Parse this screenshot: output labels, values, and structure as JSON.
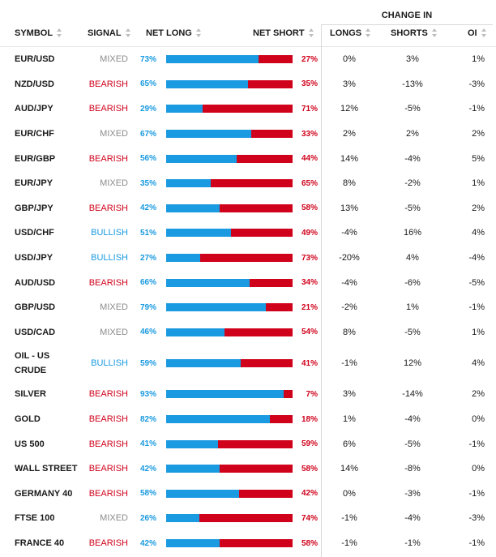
{
  "header": {
    "change_group": "CHANGE IN",
    "symbol": "SYMBOL",
    "signal": "SIGNAL",
    "net_long": "NET LONG",
    "net_short": "NET SHORT",
    "longs": "LONGS",
    "shorts": "SHORTS",
    "oi": "OI"
  },
  "colors": {
    "long": "#1a9ae0",
    "short": "#d0021b",
    "bullish": "#1a9ae0",
    "bearish": "#d0021b",
    "mixed": "#8c8c8c"
  },
  "rows": [
    {
      "symbol": "EUR/USD",
      "signal": "MIXED",
      "net_long": "73%",
      "net_long_value": 73,
      "net_short": "27%",
      "longs": "0%",
      "shorts": "3%",
      "oi": "1%"
    },
    {
      "symbol": "NZD/USD",
      "signal": "BEARISH",
      "net_long": "65%",
      "net_long_value": 65,
      "net_short": "35%",
      "longs": "3%",
      "shorts": "-13%",
      "oi": "-3%"
    },
    {
      "symbol": "AUD/JPY",
      "signal": "BEARISH",
      "net_long": "29%",
      "net_long_value": 29,
      "net_short": "71%",
      "longs": "12%",
      "shorts": "-5%",
      "oi": "-1%"
    },
    {
      "symbol": "EUR/CHF",
      "signal": "MIXED",
      "net_long": "67%",
      "net_long_value": 67,
      "net_short": "33%",
      "longs": "2%",
      "shorts": "2%",
      "oi": "2%"
    },
    {
      "symbol": "EUR/GBP",
      "signal": "BEARISH",
      "net_long": "56%",
      "net_long_value": 56,
      "net_short": "44%",
      "longs": "14%",
      "shorts": "-4%",
      "oi": "5%"
    },
    {
      "symbol": "EUR/JPY",
      "signal": "MIXED",
      "net_long": "35%",
      "net_long_value": 35,
      "net_short": "65%",
      "longs": "8%",
      "shorts": "-2%",
      "oi": "1%"
    },
    {
      "symbol": "GBP/JPY",
      "signal": "BEARISH",
      "net_long": "42%",
      "net_long_value": 42,
      "net_short": "58%",
      "longs": "13%",
      "shorts": "-5%",
      "oi": "2%"
    },
    {
      "symbol": "USD/CHF",
      "signal": "BULLISH",
      "net_long": "51%",
      "net_long_value": 51,
      "net_short": "49%",
      "longs": "-4%",
      "shorts": "16%",
      "oi": "4%"
    },
    {
      "symbol": "USD/JPY",
      "signal": "BULLISH",
      "net_long": "27%",
      "net_long_value": 27,
      "net_short": "73%",
      "longs": "-20%",
      "shorts": "4%",
      "oi": "-4%"
    },
    {
      "symbol": "AUD/USD",
      "signal": "BEARISH",
      "net_long": "66%",
      "net_long_value": 66,
      "net_short": "34%",
      "longs": "-4%",
      "shorts": "-6%",
      "oi": "-5%"
    },
    {
      "symbol": "GBP/USD",
      "signal": "MIXED",
      "net_long": "79%",
      "net_long_value": 79,
      "net_short": "21%",
      "longs": "-2%",
      "shorts": "1%",
      "oi": "-1%"
    },
    {
      "symbol": "USD/CAD",
      "signal": "MIXED",
      "net_long": "46%",
      "net_long_value": 46,
      "net_short": "54%",
      "longs": "8%",
      "shorts": "-5%",
      "oi": "1%"
    },
    {
      "symbol": "OIL - US CRUDE",
      "signal": "BULLISH",
      "net_long": "59%",
      "net_long_value": 59,
      "net_short": "41%",
      "longs": "-1%",
      "shorts": "12%",
      "oi": "4%"
    },
    {
      "symbol": "SILVER",
      "signal": "BEARISH",
      "net_long": "93%",
      "net_long_value": 93,
      "net_short": "7%",
      "longs": "3%",
      "shorts": "-14%",
      "oi": "2%"
    },
    {
      "symbol": "GOLD",
      "signal": "BEARISH",
      "net_long": "82%",
      "net_long_value": 82,
      "net_short": "18%",
      "longs": "1%",
      "shorts": "-4%",
      "oi": "0%"
    },
    {
      "symbol": "US 500",
      "signal": "BEARISH",
      "net_long": "41%",
      "net_long_value": 41,
      "net_short": "59%",
      "longs": "6%",
      "shorts": "-5%",
      "oi": "-1%"
    },
    {
      "symbol": "WALL STREET",
      "signal": "BEARISH",
      "net_long": "42%",
      "net_long_value": 42,
      "net_short": "58%",
      "longs": "14%",
      "shorts": "-8%",
      "oi": "0%"
    },
    {
      "symbol": "GERMANY 40",
      "signal": "BEARISH",
      "net_long": "58%",
      "net_long_value": 58,
      "net_short": "42%",
      "longs": "0%",
      "shorts": "-3%",
      "oi": "-1%"
    },
    {
      "symbol": "FTSE 100",
      "signal": "MIXED",
      "net_long": "26%",
      "net_long_value": 26,
      "net_short": "74%",
      "longs": "-1%",
      "shorts": "-4%",
      "oi": "-3%"
    },
    {
      "symbol": "FRANCE 40",
      "signal": "BEARISH",
      "net_long": "42%",
      "net_long_value": 42,
      "net_short": "58%",
      "longs": "-1%",
      "shorts": "-1%",
      "oi": "-1%"
    }
  ]
}
